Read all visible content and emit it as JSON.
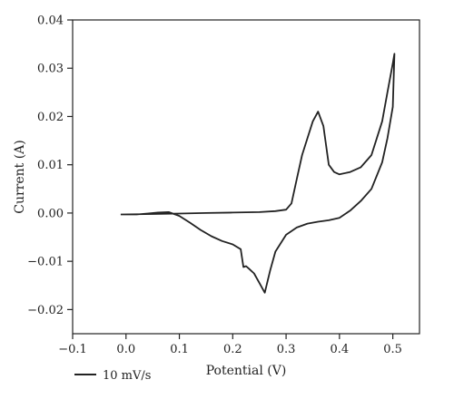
{
  "chart_data": {
    "type": "line",
    "xlabel": "Potential (V)",
    "ylabel": "Current (A)",
    "xlim": [
      -0.1,
      0.55
    ],
    "ylim": [
      -0.025,
      0.04
    ],
    "xticks": [
      -0.1,
      0.0,
      0.1,
      0.2,
      0.3,
      0.4,
      0.5
    ],
    "yticks": [
      -0.02,
      -0.01,
      0.0,
      0.01,
      0.02,
      0.03,
      0.04
    ],
    "xtick_labels": [
      "-0.1",
      "0.0",
      "0.1",
      "0.2",
      "0.3",
      "0.4",
      "0.5"
    ],
    "ytick_labels": [
      "-0.02",
      "-0.01",
      "0.00",
      "0.01",
      "0.02",
      "0.03",
      "0.04"
    ],
    "grid": false,
    "legend_position": "bottom-left",
    "series": [
      {
        "name": "10 mV/s",
        "color": "#222222",
        "x": [
          -0.01,
          0.05,
          0.1,
          0.15,
          0.2,
          0.25,
          0.28,
          0.3,
          0.31,
          0.32,
          0.33,
          0.34,
          0.35,
          0.36,
          0.37,
          0.38,
          0.39,
          0.4,
          0.42,
          0.44,
          0.46,
          0.48,
          0.49,
          0.5,
          0.503,
          0.5,
          0.49,
          0.48,
          0.46,
          0.44,
          0.42,
          0.4,
          0.38,
          0.36,
          0.34,
          0.32,
          0.3,
          0.28,
          0.27,
          0.26,
          0.25,
          0.24,
          0.23,
          0.225,
          0.22,
          0.215,
          0.2,
          0.18,
          0.16,
          0.14,
          0.12,
          0.1,
          0.08,
          0.06,
          0.04,
          0.02,
          0.0,
          -0.01
        ],
        "y": [
          -0.0003,
          -0.0002,
          -0.0001,
          0.0,
          0.0001,
          0.0002,
          0.0004,
          0.0007,
          0.002,
          0.007,
          0.012,
          0.0155,
          0.019,
          0.021,
          0.018,
          0.01,
          0.0085,
          0.008,
          0.0085,
          0.0095,
          0.012,
          0.019,
          0.025,
          0.031,
          0.033,
          0.022,
          0.0155,
          0.0105,
          0.005,
          0.0025,
          0.0005,
          -0.001,
          -0.0015,
          -0.0018,
          -0.0022,
          -0.003,
          -0.0045,
          -0.008,
          -0.012,
          -0.0165,
          -0.0145,
          -0.0125,
          -0.0115,
          -0.011,
          -0.0112,
          -0.0075,
          -0.0065,
          -0.0058,
          -0.0048,
          -0.0035,
          -0.002,
          -0.0006,
          0.0002,
          0.0001,
          -0.0001,
          -0.0003,
          -0.0003,
          -0.0003
        ]
      }
    ]
  }
}
